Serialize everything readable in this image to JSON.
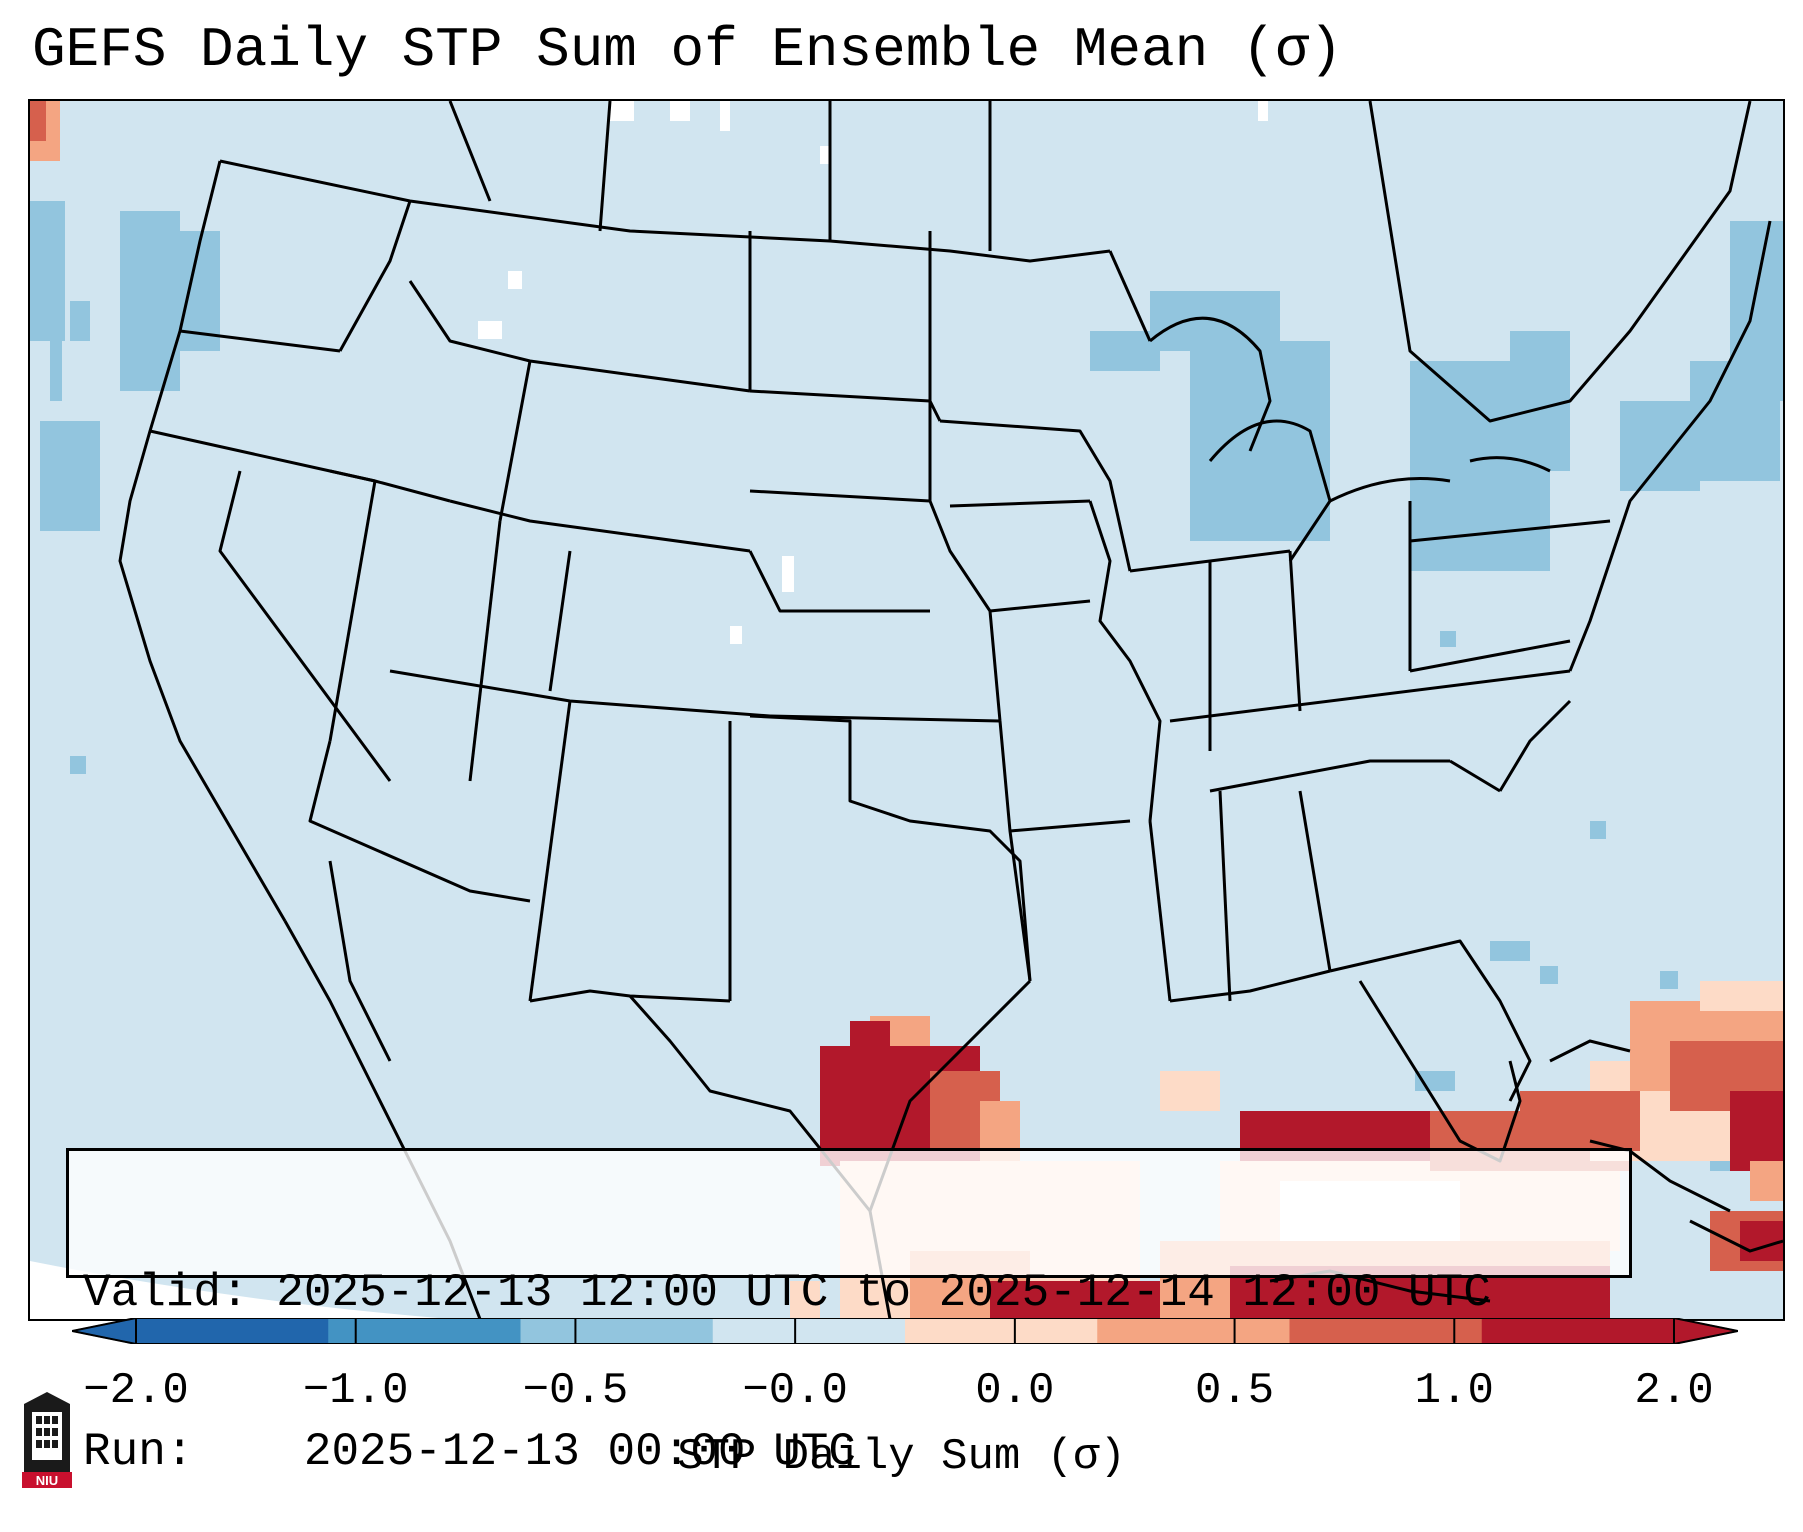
{
  "title": "GEFS Daily STP Sum of Ensemble Mean (σ)",
  "info": {
    "valid_label": "Valid:",
    "valid_value": "2025-12-13 12:00 UTC to 2025-12-14 12:00 UTC",
    "run_label": "Run:",
    "run_value": "2025-12-13 00:00 UTC"
  },
  "colorbar": {
    "title": "STP Daily Sum (σ)",
    "ticks": [
      "−2.0",
      "−1.0",
      "−0.5",
      "−0.0",
      "0.0",
      "0.5",
      "1.0",
      "2.0"
    ],
    "colors": [
      "#2166ac",
      "#4393c3",
      "#92c5de",
      "#d1e5f0",
      "#fddbc7",
      "#f4a582",
      "#d6604d",
      "#b2182b"
    ],
    "extend": "both"
  },
  "map": {
    "region": "CONUS",
    "background_value_color": "#d1e5f0",
    "positive_anomaly_color": "#b2182b",
    "negative_anomaly_color": "#92c5de"
  },
  "logo": {
    "icon": "niu-logo-icon",
    "text": "NIU"
  }
}
